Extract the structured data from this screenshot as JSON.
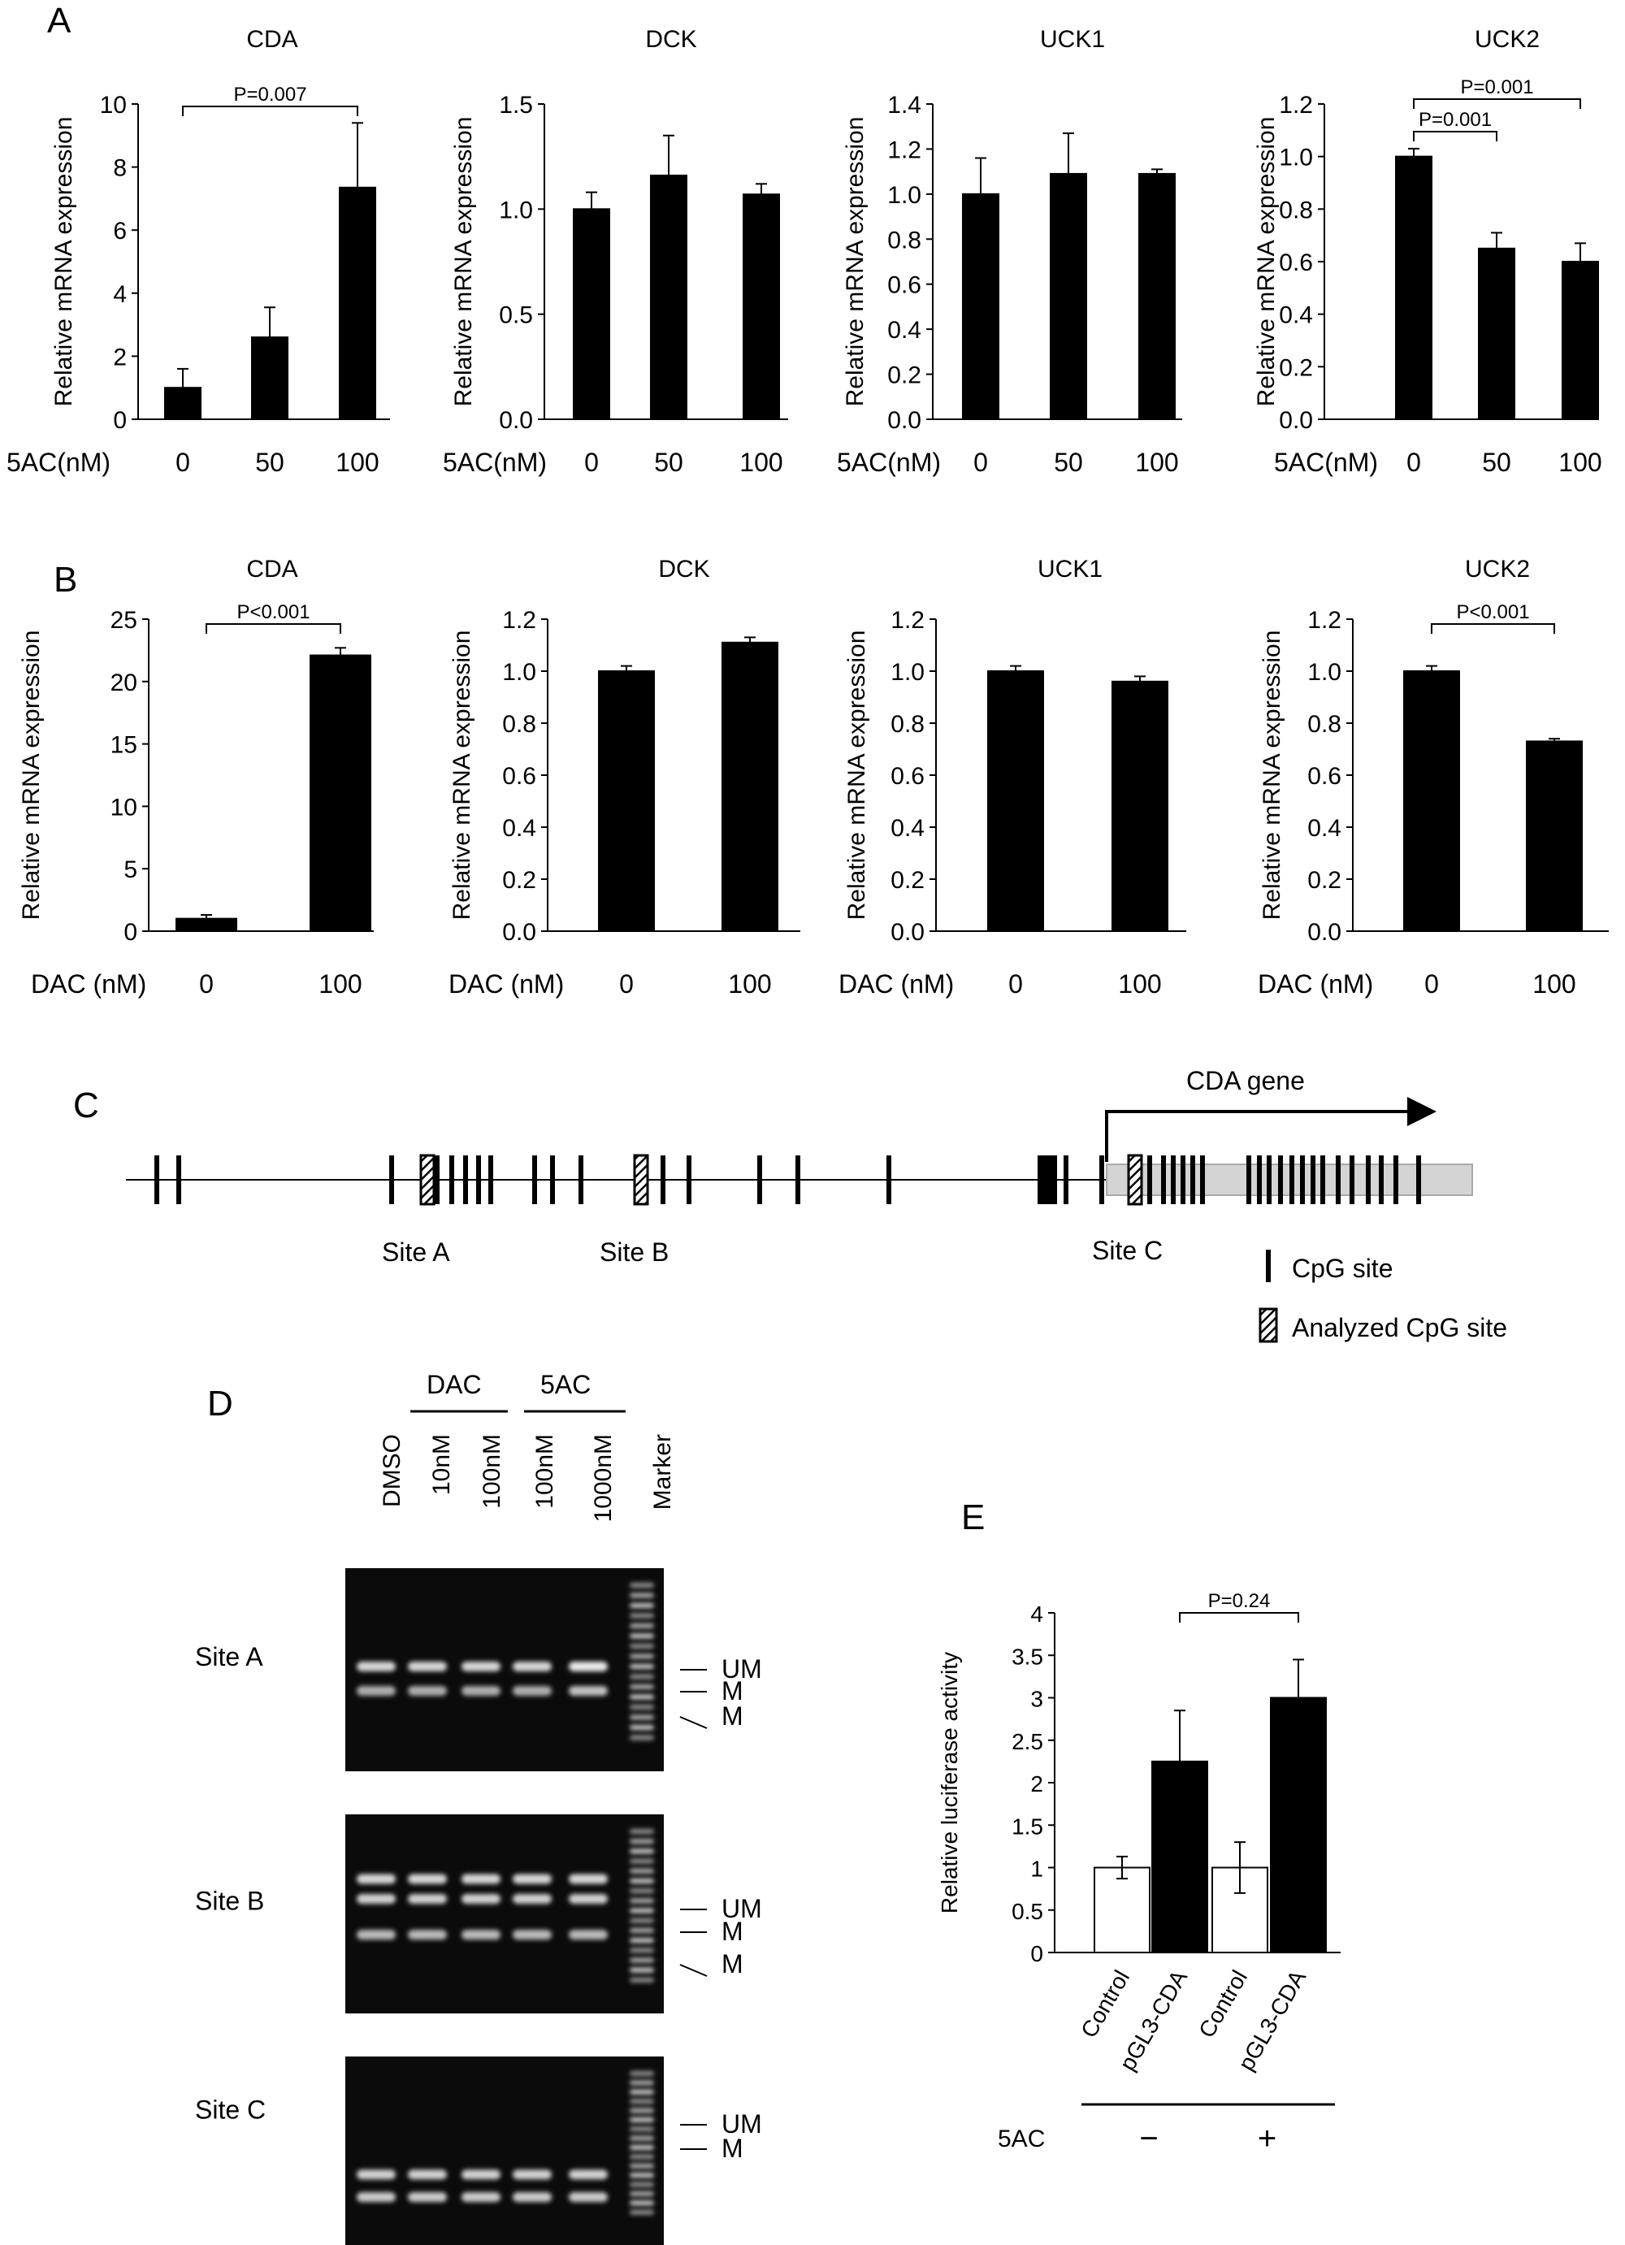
{
  "panel_labels": {
    "a": "A",
    "b": "B",
    "c": "C",
    "d": "D",
    "e": "E"
  },
  "ylabel": "Relative  mRNA expression",
  "chart_data": [
    {
      "panel": "A",
      "type": "bar",
      "title": "CDA",
      "xlabel": "5AC(nM)",
      "categories": [
        "0",
        "50",
        "100"
      ],
      "values": [
        1.0,
        2.6,
        7.35
      ],
      "errors": [
        0.6,
        0.95,
        2.05
      ],
      "ylim": [
        0,
        10
      ],
      "ytick_labels": [
        "0",
        "2",
        "4",
        "6",
        "8",
        "10"
      ],
      "yticks": [
        0,
        2,
        4,
        6,
        8,
        10
      ],
      "annotations": [
        {
          "label": "P=0.007",
          "from": 0,
          "to": 2
        }
      ]
    },
    {
      "panel": "A",
      "type": "bar",
      "title": "DCK",
      "xlabel": "5AC(nM)",
      "categories": [
        "0",
        "50",
        "100"
      ],
      "values": [
        1.0,
        1.16,
        1.07
      ],
      "errors": [
        0.08,
        0.19,
        0.05
      ],
      "ylim": [
        0,
        1.5
      ],
      "ytick_labels": [
        "0.0",
        "0.5",
        "1.0",
        "1.5"
      ],
      "yticks": [
        0,
        0.5,
        1.0,
        1.5
      ],
      "annotations": []
    },
    {
      "panel": "A",
      "type": "bar",
      "title": "UCK1",
      "xlabel": "5AC(nM)",
      "categories": [
        "0",
        "50",
        "100"
      ],
      "values": [
        1.0,
        1.09,
        1.09
      ],
      "errors": [
        0.16,
        0.18,
        0.02
      ],
      "ylim": [
        0,
        1.4
      ],
      "ytick_labels": [
        "0.0",
        "0.2",
        "0.4",
        "0.6",
        "0.8",
        "1.0",
        "1.2",
        "1.4"
      ],
      "yticks": [
        0,
        0.2,
        0.4,
        0.6,
        0.8,
        1.0,
        1.2,
        1.4
      ],
      "annotations": []
    },
    {
      "panel": "A",
      "type": "bar",
      "title": "UCK2",
      "xlabel": "5AC(nM)",
      "categories": [
        "0",
        "50",
        "100"
      ],
      "values": [
        1.0,
        0.65,
        0.6
      ],
      "errors": [
        0.03,
        0.06,
        0.07
      ],
      "ylim": [
        0,
        1.2
      ],
      "ytick_labels": [
        "0.0",
        "0.2",
        "0.4",
        "0.6",
        "0.8",
        "1.0",
        "1.2"
      ],
      "yticks": [
        0,
        0.2,
        0.4,
        0.6,
        0.8,
        1.0,
        1.2
      ],
      "annotations": [
        {
          "label": "P=0.001",
          "from": 0,
          "to": 2
        },
        {
          "label": "P=0.001",
          "from": 0,
          "to": 1
        }
      ]
    },
    {
      "panel": "B",
      "type": "bar",
      "title": "CDA",
      "xlabel": "DAC (nM)",
      "categories": [
        "0",
        "100"
      ],
      "values": [
        1.0,
        22.1
      ],
      "errors": [
        0.3,
        0.6
      ],
      "ylim": [
        0,
        25
      ],
      "ytick_labels": [
        "0",
        "5",
        "10",
        "15",
        "20",
        "25"
      ],
      "yticks": [
        0,
        5,
        10,
        15,
        20,
        25
      ],
      "annotations": [
        {
          "label": "P<0.001",
          "from": 0,
          "to": 1
        }
      ]
    },
    {
      "panel": "B",
      "type": "bar",
      "title": "DCK",
      "xlabel": "DAC (nM)",
      "categories": [
        "0",
        "100"
      ],
      "values": [
        1.0,
        1.11
      ],
      "errors": [
        0.02,
        0.02
      ],
      "ylim": [
        0,
        1.2
      ],
      "ytick_labels": [
        "0.0",
        "0.2",
        "0.4",
        "0.6",
        "0.8",
        "1.0",
        "1.2"
      ],
      "yticks": [
        0,
        0.2,
        0.4,
        0.6,
        0.8,
        1.0,
        1.2
      ],
      "annotations": []
    },
    {
      "panel": "B",
      "type": "bar",
      "title": "UCK1",
      "xlabel": "DAC (nM)",
      "categories": [
        "0",
        "100"
      ],
      "values": [
        1.0,
        0.96
      ],
      "errors": [
        0.02,
        0.02
      ],
      "ylim": [
        0,
        1.2
      ],
      "ytick_labels": [
        "0.0",
        "0.2",
        "0.4",
        "0.6",
        "0.8",
        "1.0",
        "1.2"
      ],
      "yticks": [
        0,
        0.2,
        0.4,
        0.6,
        0.8,
        1.0,
        1.2
      ],
      "annotations": []
    },
    {
      "panel": "B",
      "type": "bar",
      "title": "UCK2",
      "xlabel": "DAC (nM)",
      "categories": [
        "0",
        "100"
      ],
      "values": [
        1.0,
        0.73
      ],
      "errors": [
        0.02,
        0.01
      ],
      "ylim": [
        0,
        1.2
      ],
      "ytick_labels": [
        "0.0",
        "0.2",
        "0.4",
        "0.6",
        "0.8",
        "1.0",
        "1.2"
      ],
      "yticks": [
        0,
        0.2,
        0.4,
        0.6,
        0.8,
        1.0,
        1.2
      ],
      "annotations": [
        {
          "label": "P<0.001",
          "from": 0,
          "to": 1
        }
      ]
    },
    {
      "panel": "E",
      "type": "bar",
      "title": "",
      "xlabel": "",
      "ylabel": "Relative luciferase activity",
      "categories": [
        "Control",
        "pGL3-CDA",
        "Control",
        "pGL3-CDA"
      ],
      "fills": [
        "#ffffff",
        "#000000",
        "#ffffff",
        "#000000"
      ],
      "values": [
        1.0,
        2.25,
        1.0,
        3.0
      ],
      "errors": [
        0.13,
        0.6,
        0.3,
        0.45
      ],
      "ylim": [
        0,
        4
      ],
      "ytick_labels": [
        "0",
        "0.5",
        "1",
        "1.5",
        "2",
        "2.5",
        "3",
        "3.5",
        "4"
      ],
      "yticks": [
        0,
        0.5,
        1,
        1.5,
        2,
        2.5,
        3,
        3.5,
        4
      ],
      "annotations": [
        {
          "label": "P=0.24",
          "from": 1,
          "to": 3
        }
      ],
      "groups": {
        "label": "5AC",
        "items": [
          {
            "label": "−",
            "from": 0,
            "to": 1
          },
          {
            "label": "+",
            "from": 2,
            "to": 3
          }
        ]
      }
    }
  ],
  "gene_map": {
    "gene_label": "CDA gene",
    "site_labels": [
      "Site A",
      "Site B",
      "Site C"
    ],
    "legend": [
      {
        "label": "CpG site"
      },
      {
        "label": "Analyzed CpG site"
      }
    ]
  },
  "gel": {
    "group_labels": [
      "DAC",
      "5AC"
    ],
    "lane_labels": [
      "DMSO",
      "10nM",
      "100nM",
      "100nM",
      "1000nM",
      "Marker"
    ],
    "sites": [
      {
        "label": "Site A",
        "band_labels": [
          "UM",
          "M",
          "M"
        ]
      },
      {
        "label": "Site B",
        "band_labels": [
          "UM",
          "M",
          "M"
        ]
      },
      {
        "label": "Site C",
        "band_labels": [
          "UM",
          "M"
        ]
      }
    ]
  }
}
